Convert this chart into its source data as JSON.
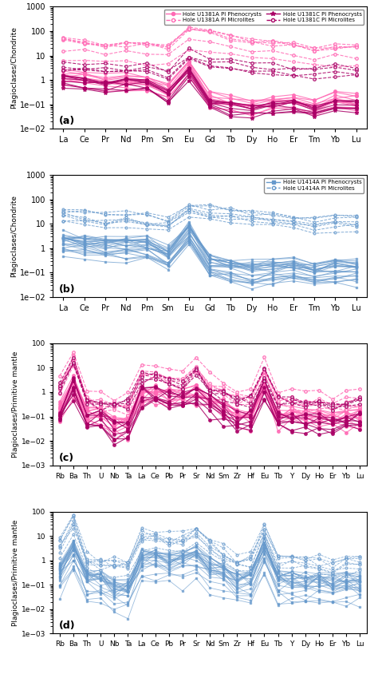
{
  "panel_a": {
    "label": "(a)",
    "xlabel_elements": [
      "La",
      "Ce",
      "Pr",
      "Nd",
      "Pm",
      "Sm",
      "Eu",
      "Gd",
      "Tb",
      "Dy",
      "Ho",
      "Er",
      "Tm",
      "Yb",
      "Lu"
    ],
    "ylabel": "Plagioclases/Chondrite",
    "ylim": [
      0.01,
      1000
    ],
    "pheno_a_color": "#FF69B4",
    "micro_a_color": "#FF69B4",
    "pheno_c_color": "#AA0066",
    "micro_c_color": "#AA0066"
  },
  "panel_b": {
    "label": "(b)",
    "xlabel_elements": [
      "La",
      "Ce",
      "Pr",
      "Nd",
      "Pm",
      "Sm",
      "Eu",
      "Gd",
      "Tb",
      "Dy",
      "Ho",
      "Er",
      "Tm",
      "Yb",
      "Lu"
    ],
    "ylabel": "Plagioclases/Chondrite",
    "ylim": [
      0.01,
      1000
    ],
    "pheno_color": "#6699CC",
    "micro_color": "#6699CC"
  },
  "panel_c": {
    "label": "(c)",
    "xlabel_elements": [
      "Rb",
      "Ba",
      "Th",
      "U",
      "Nb",
      "Ta",
      "La",
      "Ce",
      "Pb",
      "Pr",
      "Sr",
      "Nd",
      "Sm",
      "Zr",
      "Hf",
      "Eu",
      "Tb",
      "Y",
      "Dy",
      "Ho",
      "Er",
      "Yb",
      "Lu"
    ],
    "ylabel": "Plagioclases/Primitive mantle",
    "ylim": [
      0.001,
      100
    ],
    "pheno_a_color": "#FF69B4",
    "micro_a_color": "#FF69B4",
    "pheno_c_color": "#AA0066",
    "micro_c_color": "#AA0066"
  },
  "panel_d": {
    "label": "(d)",
    "xlabel_elements": [
      "Rb",
      "Ba",
      "Th",
      "U",
      "Nb",
      "Ta",
      "La",
      "Ce",
      "Pb",
      "Pr",
      "Sr",
      "Nd",
      "Sm",
      "Zr",
      "Hf",
      "Eu",
      "Tb",
      "Y",
      "Dy",
      "Ho",
      "Er",
      "Yb",
      "Lu"
    ],
    "ylabel": "Plagioclases/Primitive mantle",
    "ylim": [
      0.001,
      100
    ],
    "pheno_color": "#6699CC",
    "micro_color": "#6699CC"
  }
}
